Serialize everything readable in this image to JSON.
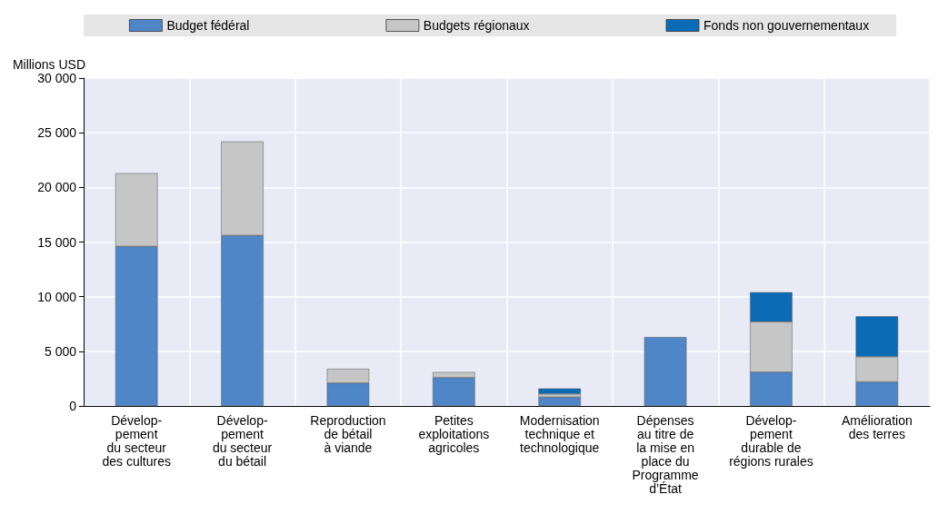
{
  "chart_data": {
    "type": "bar",
    "stacked": true,
    "ylabel": "Millions USD",
    "categories": [
      "Dévelop-\npement\ndu secteur\ndes cultures",
      "Dévelop-\npement\ndu secteur\ndu bétail",
      "Reproduction\nde bétail\nà viande",
      "Petites\nexploitations\nagricoles",
      "Modernisation\ntechnique et\ntechnologique",
      "Dépenses\nau titre de\nla mise en\nplace du\nProgramme\nd’État",
      "Dévelop-\npement\ndurable de\nrégions rurales",
      "Amélioration\ndes terres"
    ],
    "series": [
      {
        "name": "Budget fédéral",
        "color": "#4e86c8",
        "values": [
          14600,
          15600,
          2100,
          2600,
          800,
          6300,
          3100,
          2200
        ]
      },
      {
        "name": "Budgets régionaux",
        "color": "#c6c6c6",
        "values": [
          6700,
          8600,
          1300,
          500,
          300,
          null,
          4600,
          2300
        ]
      },
      {
        "name": "Fonds non gouvernementaux",
        "color": "#0b6cb5",
        "values": [
          null,
          null,
          null,
          null,
          500,
          null,
          2700,
          3700
        ]
      }
    ],
    "ylim": [
      0,
      30000
    ],
    "yticks": [
      0,
      {
        "value": 5000,
        "label": "5 000"
      },
      {
        "value": 10000,
        "label": "10 000"
      },
      {
        "value": 15000,
        "label": "15 000"
      },
      {
        "value": 20000,
        "label": "20 000"
      },
      {
        "value": 25000,
        "label": "25 000"
      },
      {
        "value": 30000,
        "label": "30 000"
      }
    ],
    "grid": true,
    "legend": "top"
  }
}
